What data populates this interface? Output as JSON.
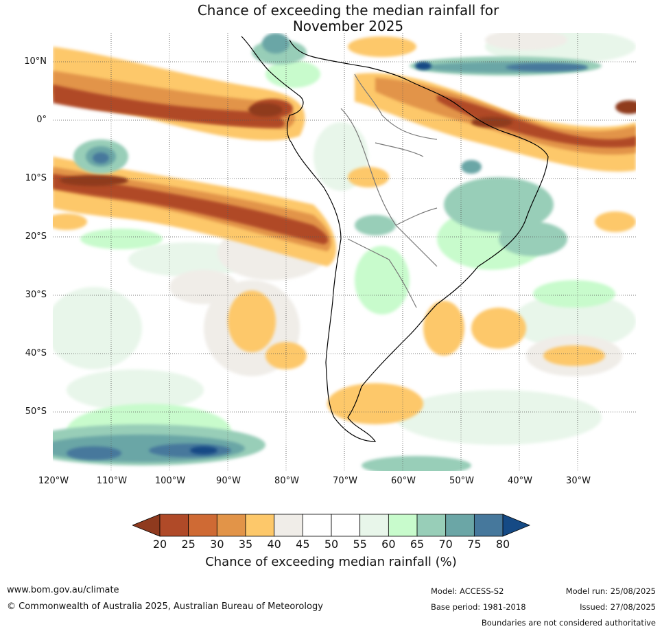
{
  "title_line1": "Chance of exceeding the median rainfall for",
  "title_line2": "November 2025",
  "lat_labels": [
    "10°N",
    "0°",
    "10°S",
    "20°S",
    "30°S",
    "40°S",
    "50°S"
  ],
  "lon_labels": [
    "120°W",
    "110°W",
    "100°W",
    "90°W",
    "80°W",
    "70°W",
    "60°W",
    "50°W",
    "40°W",
    "30°W"
  ],
  "colorbar": {
    "ticks": [
      "20",
      "25",
      "30",
      "35",
      "40",
      "45",
      "50",
      "55",
      "60",
      "65",
      "70",
      "75",
      "80"
    ],
    "colors": [
      "#8f3a1e",
      "#b04a28",
      "#cf6a34",
      "#e29448",
      "#fdc86a",
      "#f0ede8",
      "#ffffff",
      "#ffffff",
      "#e8f6ea",
      "#c8fbcc",
      "#98ceb8",
      "#6ba6a6",
      "#46789c",
      "#154a85"
    ],
    "title": "Chance of exceeding median rainfall (%)"
  },
  "footer": {
    "website": "www.bom.gov.au/climate",
    "copyright": "© Commonwealth of Australia 2025, Australian Bureau of Meteorology",
    "model": "Model: ACCESS-S2",
    "base_period": "Base period: 1981-2018",
    "model_run": "Model run: 25/08/2025",
    "issued": "Issued: 27/08/2025",
    "disclaimer": "Boundaries are not considered authoritative"
  }
}
